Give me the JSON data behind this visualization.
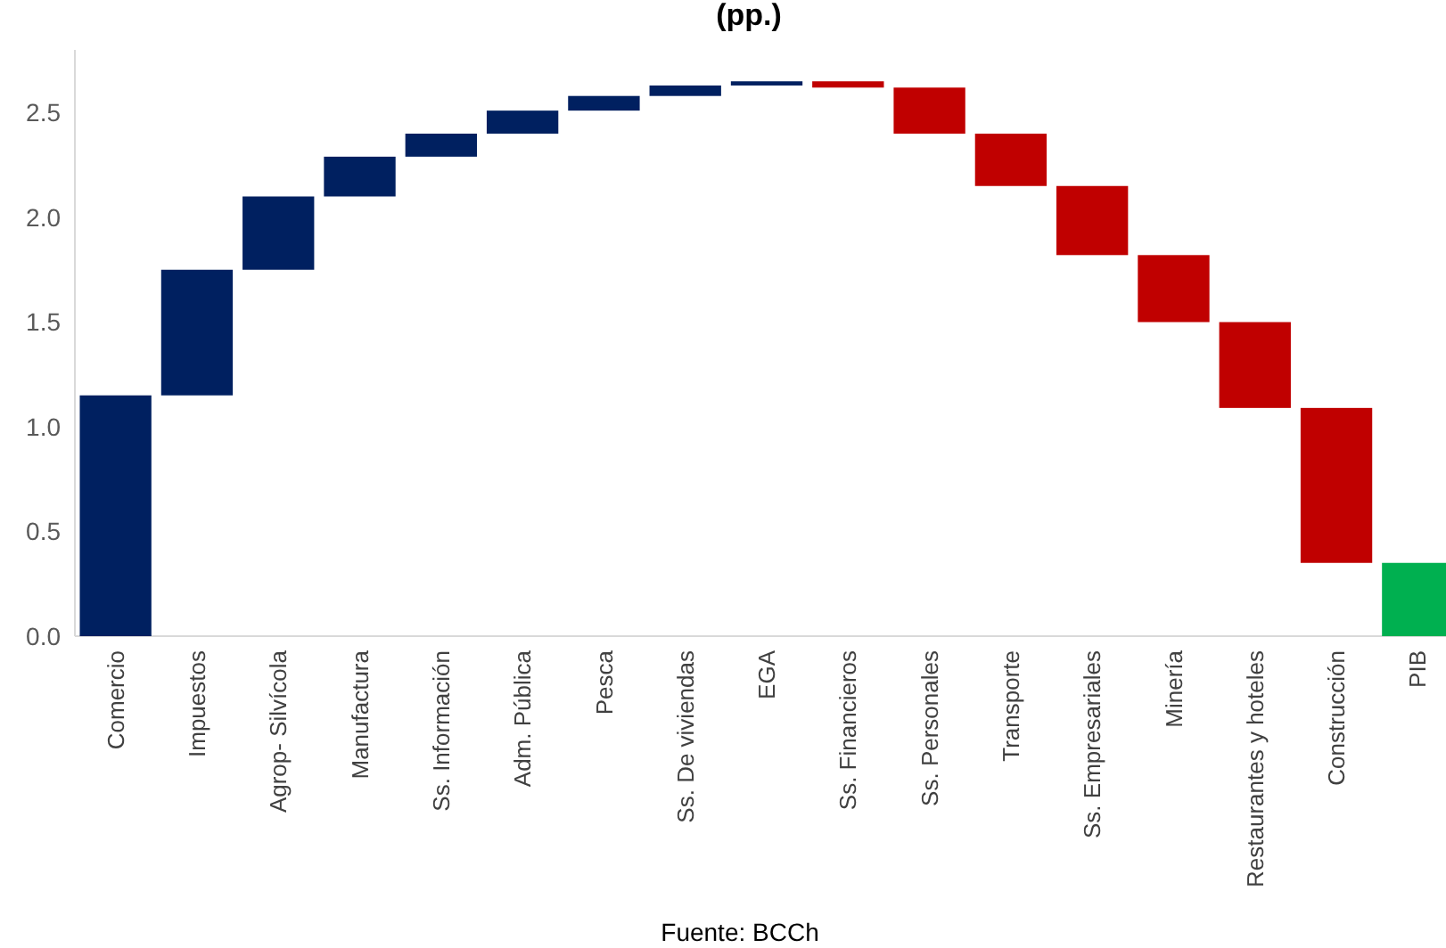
{
  "chart_data": {
    "type": "bar",
    "title": "(pp.)",
    "categories": [
      "Comercio",
      "Impuestos",
      "Agrop- Silvícola",
      "Manufactura",
      "Ss. Información",
      "Adm. Pública",
      "Pesca",
      "Ss. De viviendas",
      "EGA",
      "Ss. Financieros",
      "Ss. Personales",
      "Transporte",
      "Ss. Empresariales",
      "Minería",
      "Restaurantes y hoteles",
      "Construcción",
      "PIB"
    ],
    "values": [
      1.15,
      0.6,
      0.35,
      0.19,
      0.11,
      0.11,
      0.07,
      0.05,
      0.02,
      -0.03,
      -0.22,
      -0.25,
      -0.33,
      -0.32,
      -0.41,
      -0.74,
      0.35
    ],
    "base": [
      0,
      1.15,
      1.75,
      2.1,
      2.29,
      2.4,
      2.51,
      2.58,
      2.63,
      2.65,
      2.62,
      2.4,
      2.15,
      1.82,
      1.5,
      1.09,
      0
    ],
    "colors": [
      "#002060",
      "#002060",
      "#002060",
      "#002060",
      "#002060",
      "#002060",
      "#002060",
      "#002060",
      "#002060",
      "#c00000",
      "#c00000",
      "#c00000",
      "#c00000",
      "#c00000",
      "#c00000",
      "#c00000",
      "#00b050"
    ],
    "ylim": [
      0,
      2.8
    ],
    "yticks": [
      {
        "value": 0,
        "label": "0.0"
      },
      {
        "value": 0.5,
        "label": "0.5"
      },
      {
        "value": 1,
        "label": "1.0"
      },
      {
        "value": 1.5,
        "label": "1.5"
      },
      {
        "value": 2,
        "label": "2.0"
      },
      {
        "value": 2.5,
        "label": "2.5"
      }
    ],
    "annotations": [
      "Fuente: BCCh"
    ]
  }
}
